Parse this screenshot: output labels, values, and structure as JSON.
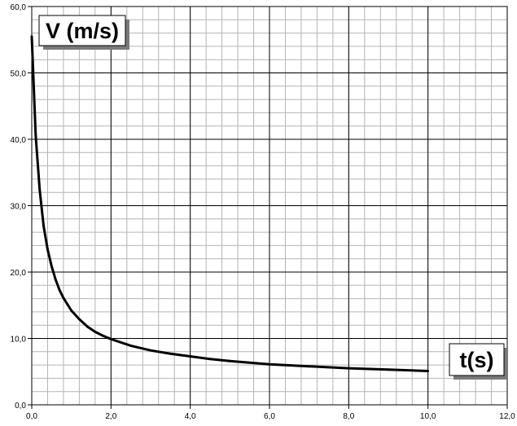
{
  "chart_data": {
    "type": "line",
    "title": "",
    "xlabel": "t(s)",
    "ylabel": "V (m/s)",
    "xlim": [
      0,
      12
    ],
    "ylim": [
      0,
      60
    ],
    "x_major_step": 2,
    "y_major_step": 10,
    "x_minor_step": 0.4,
    "y_minor_step": 2,
    "grid": true,
    "x_tick_labels": [
      "0,0",
      "2,0",
      "4,0",
      "6,0",
      "8,0",
      "10,0",
      "12,0"
    ],
    "y_tick_labels": [
      "0,0",
      "10,0",
      "20,0",
      "30,0",
      "40,0",
      "50,0",
      "60,0"
    ],
    "series": [
      {
        "color": "#000000",
        "x": [
          0,
          0.1,
          0.2,
          0.3,
          0.4,
          0.5,
          0.6,
          0.7,
          0.8,
          1.0,
          1.2,
          1.4,
          1.6,
          1.8,
          2.0,
          2.5,
          3.0,
          3.5,
          4.0,
          4.5,
          5.0,
          6.0,
          7.0,
          8.0,
          9.0,
          10.0
        ],
        "y": [
          55.5,
          40.5,
          32.4,
          26.9,
          23.4,
          20.9,
          18.9,
          17.3,
          16.1,
          14.2,
          12.9,
          11.8,
          11.0,
          10.4,
          9.9,
          8.9,
          8.2,
          7.7,
          7.3,
          6.9,
          6.6,
          6.1,
          5.8,
          5.5,
          5.3,
          5.1
        ]
      }
    ]
  }
}
